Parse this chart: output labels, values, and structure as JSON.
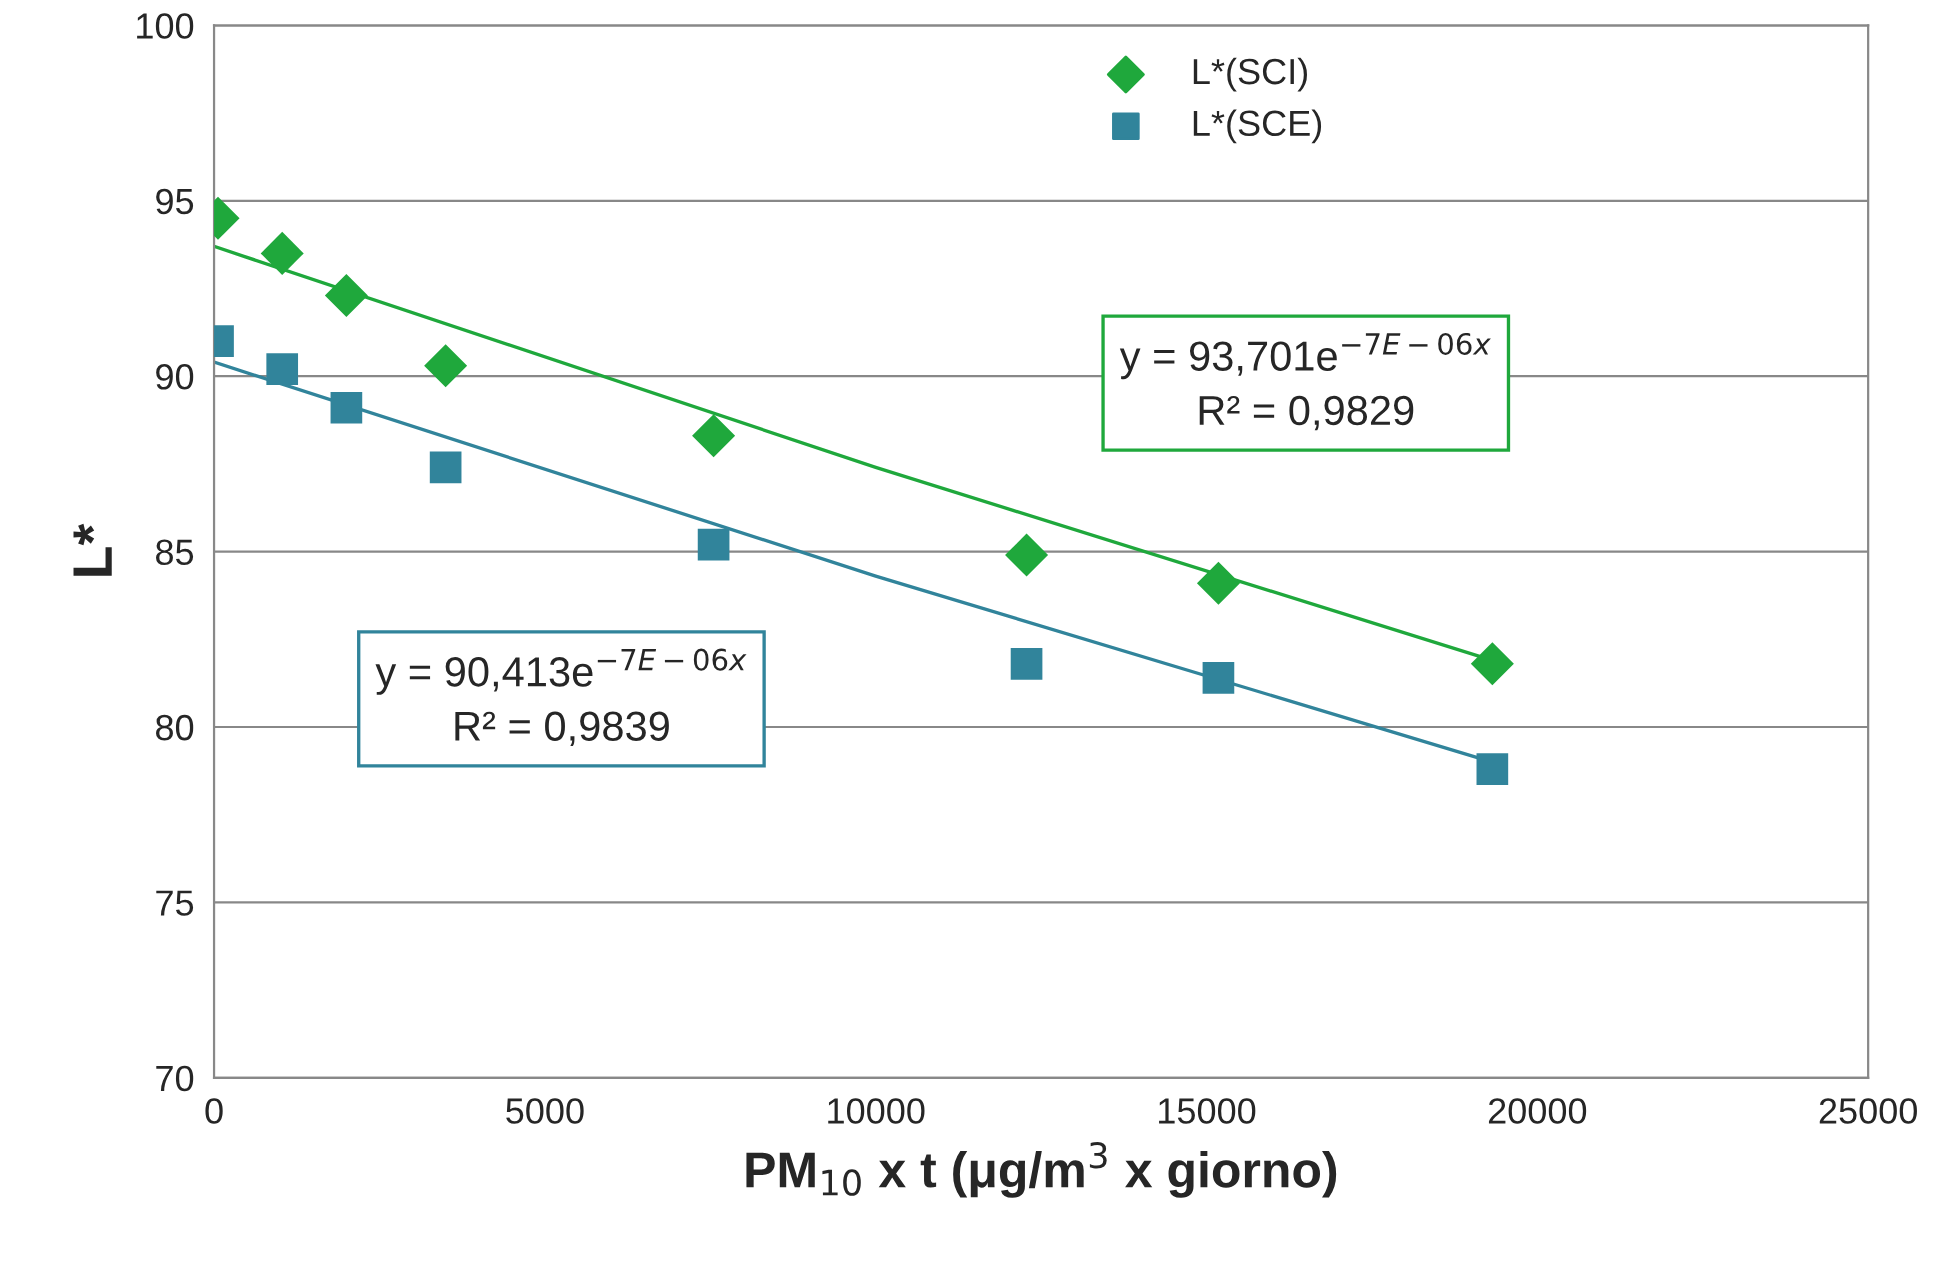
{
  "chart_data": {
    "type": "scatter",
    "xlabel": "PM$_{10}$ x t (μg/m$^{3}$ x giorno)",
    "ylabel": "L*",
    "xlim": [
      0,
      25000
    ],
    "xticks": [
      0,
      5000,
      10000,
      15000,
      20000,
      25000
    ],
    "ylim": [
      70,
      100
    ],
    "yticks": [
      70,
      75,
      80,
      85,
      90,
      95,
      100
    ],
    "grid": "y",
    "legend": "top",
    "series": [
      {
        "name": "L*(SCI)",
        "marker": "diamond",
        "color": "#1fa83c",
        "x": [
          60,
          1030,
          2000,
          3500,
          7550,
          12280,
          15180,
          19320
        ],
        "values": [
          94.5,
          93.5,
          92.3,
          90.3,
          88.3,
          84.9,
          84.1,
          81.8
        ]
      },
      {
        "name": "L*(SCE)",
        "marker": "square",
        "color": "#31849b",
        "x": [
          60,
          1030,
          2000,
          3500,
          7550,
          12280,
          15180,
          19320
        ],
        "values": [
          91.0,
          90.2,
          89.1,
          87.4,
          85.2,
          81.8,
          81.4,
          78.8
        ]
      },
      {
        "type": "line",
        "marker": "none",
        "line_style": "solid",
        "color": "#1fa83c",
        "x": [
          0,
          10000,
          19320
        ],
        "values": [
          93.7,
          87.4,
          81.9
        ]
      },
      {
        "type": "line",
        "marker": "none",
        "line_style": "solid",
        "color": "#31849b",
        "x": [
          0,
          10000,
          19320
        ],
        "values": [
          90.4,
          84.3,
          79.0
        ]
      }
    ],
    "annotations": [
      "y = 93,701e$^{−7E−06x}$\nR² = 0,9829",
      "y = 90,413e$^{−7E−06x}$\nR² = 0,9839"
    ]
  }
}
